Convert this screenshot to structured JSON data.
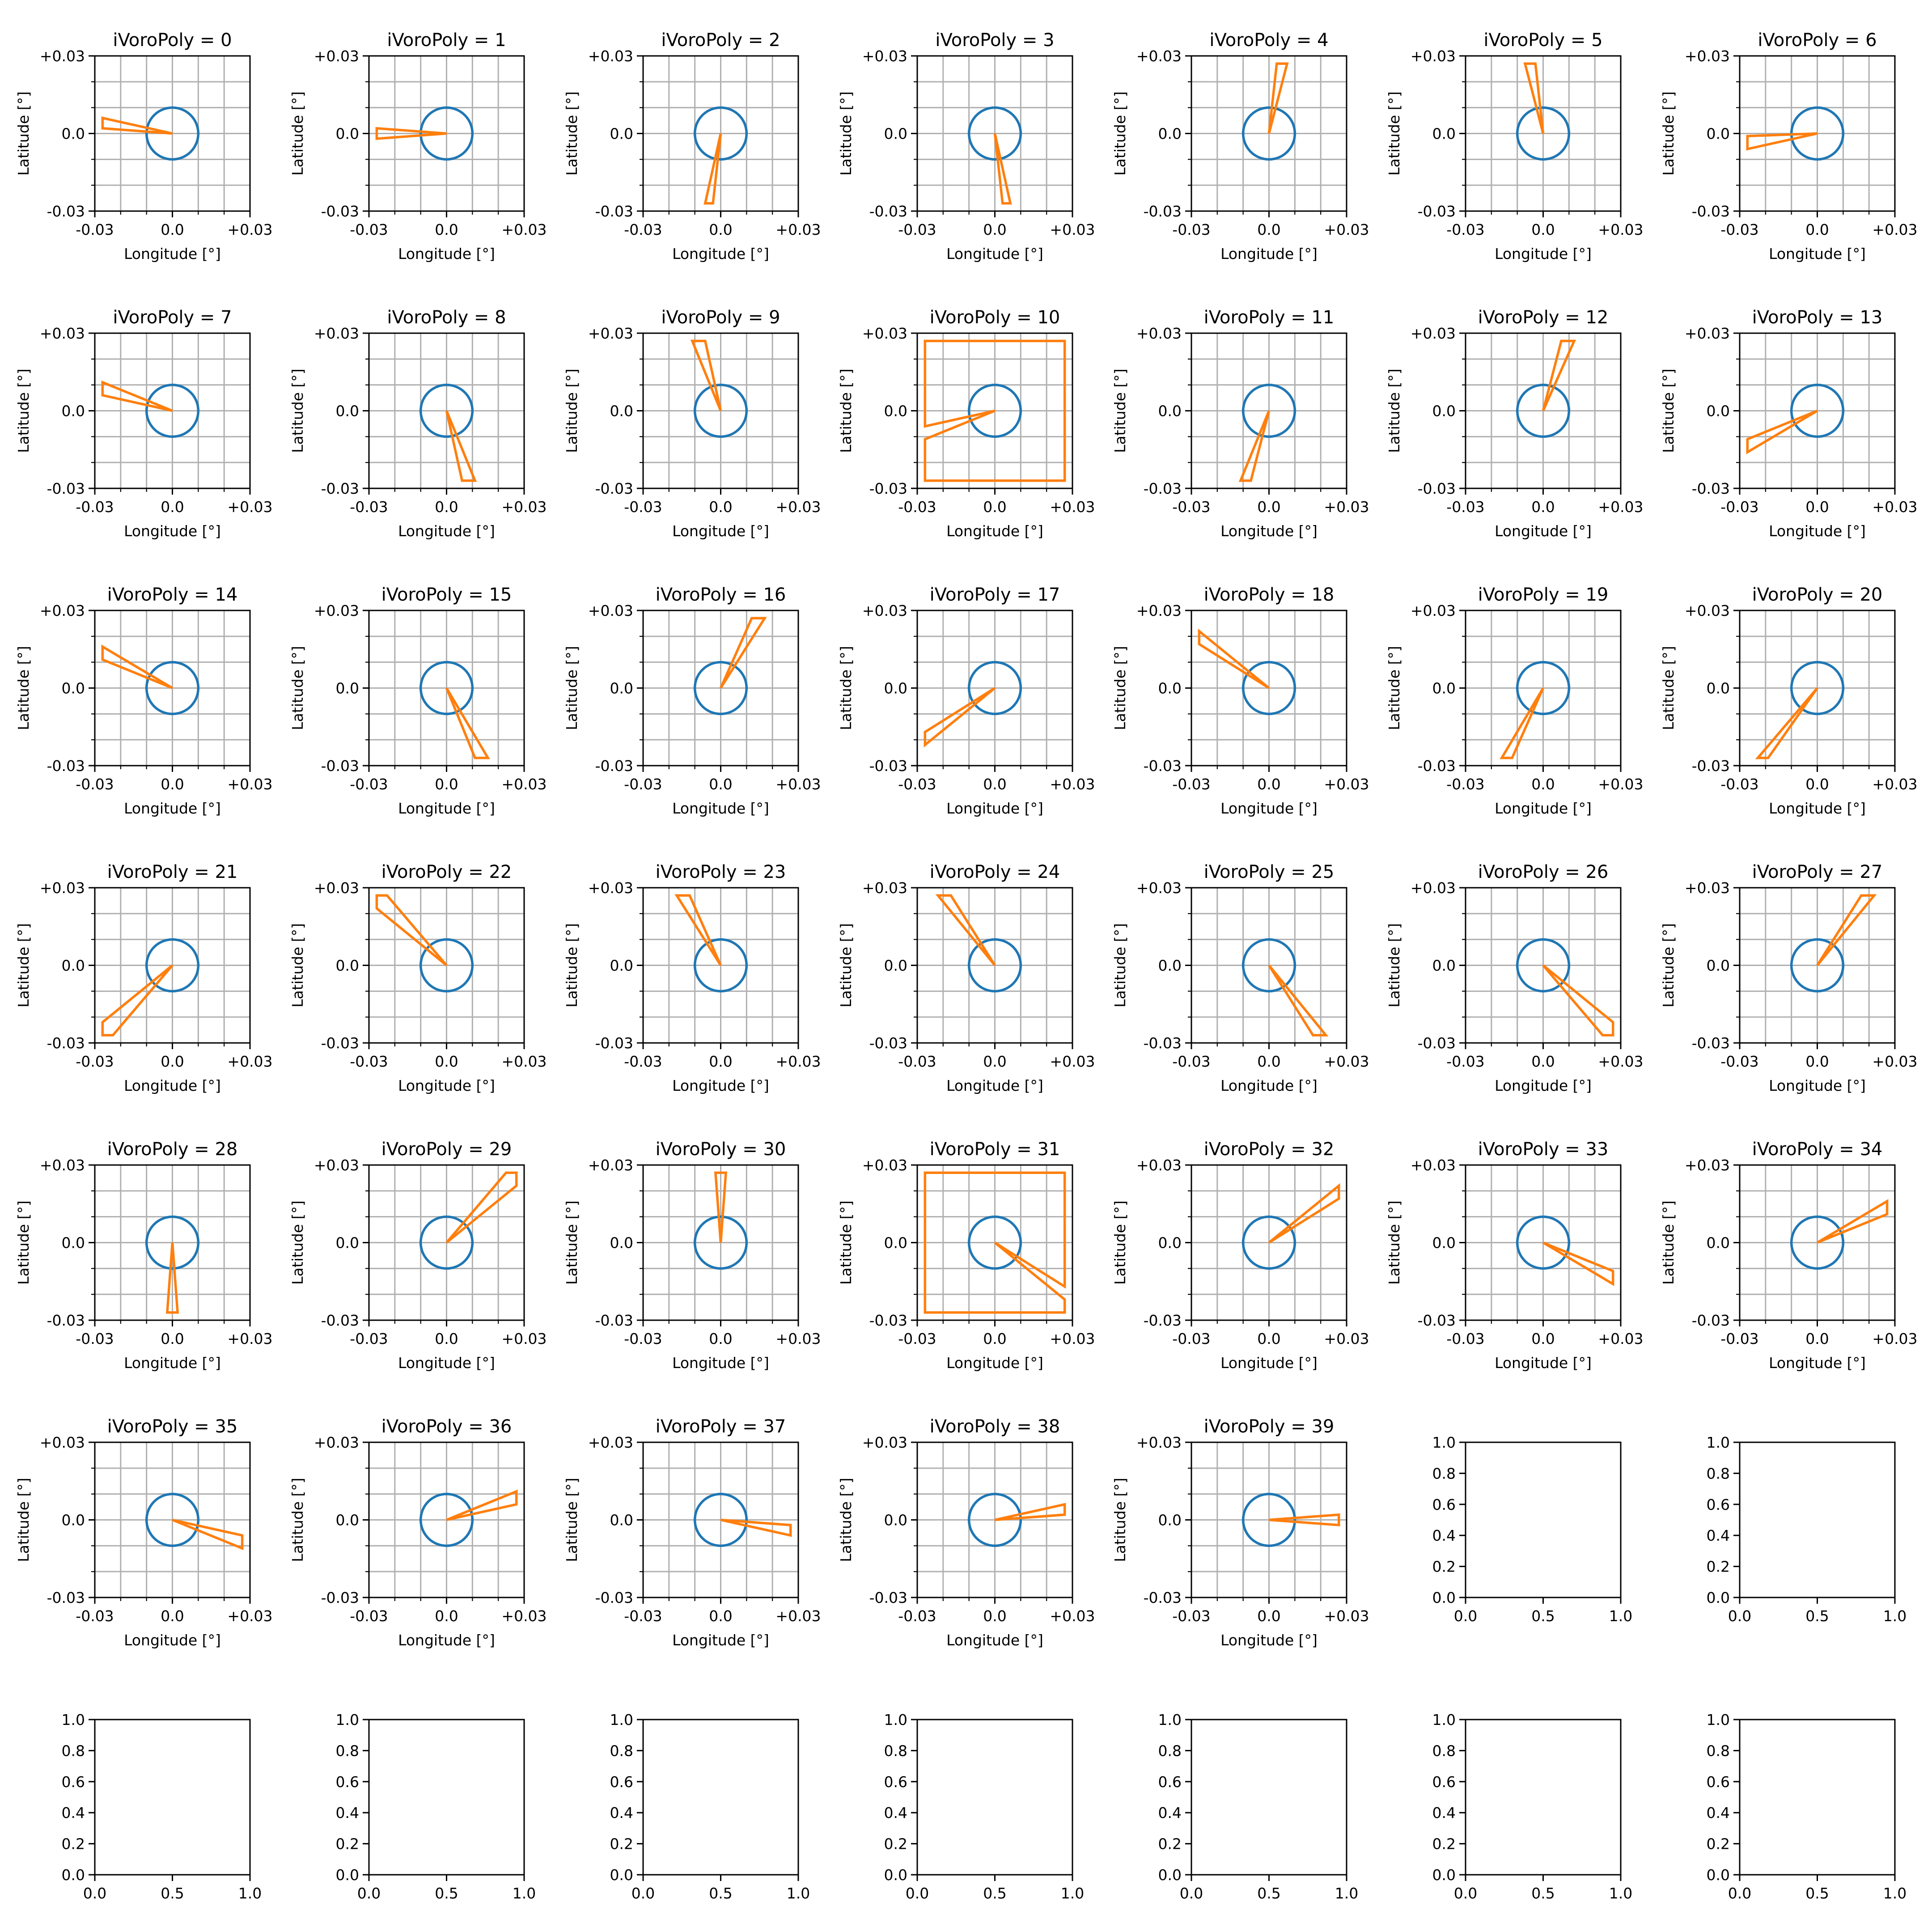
{
  "figure": {
    "grid_rows": 7,
    "grid_cols": 7,
    "colors": {
      "circle": "#1f77b4",
      "polygon": "#ff7f0e",
      "grid": "#b0b0b0",
      "axes": "#000000",
      "background": "#ffffff"
    }
  },
  "chart_data": {
    "type": "polygon-grid",
    "title_prefix": "iVoroPoly = ",
    "xlabel": "Longitude [°]",
    "ylabel": "Latitude [°]",
    "xlim": [
      -0.03,
      0.03
    ],
    "ylim": [
      -0.03,
      0.03
    ],
    "xticks": [
      -0.03,
      0.0,
      0.03
    ],
    "xtick_labels": [
      "-0.03",
      "0.0",
      "+0.03"
    ],
    "yticks": [
      -0.03,
      0.0,
      0.03
    ],
    "ytick_labels": [
      "-0.03",
      "0.0",
      "+0.03"
    ],
    "minor_step": 0.01,
    "grid": true,
    "circle": {
      "center": [
        0,
        0
      ],
      "radius": 0.01
    },
    "panels": [
      {
        "index": 0,
        "polygon": [
          [
            0,
            0
          ],
          [
            -0.027,
            0.006
          ],
          [
            -0.027,
            0.002
          ]
        ]
      },
      {
        "index": 1,
        "polygon": [
          [
            0,
            0
          ],
          [
            -0.027,
            0.002
          ],
          [
            -0.027,
            -0.002
          ]
        ]
      },
      {
        "index": 2,
        "polygon": [
          [
            0,
            0
          ],
          [
            -0.003,
            -0.027
          ],
          [
            -0.006,
            -0.027
          ]
        ]
      },
      {
        "index": 3,
        "polygon": [
          [
            0,
            0
          ],
          [
            0.003,
            -0.027
          ],
          [
            0.006,
            -0.027
          ]
        ]
      },
      {
        "index": 4,
        "polygon": [
          [
            0,
            0
          ],
          [
            0.003,
            0.027
          ],
          [
            0.007,
            0.027
          ]
        ]
      },
      {
        "index": 5,
        "polygon": [
          [
            0,
            0
          ],
          [
            -0.007,
            0.027
          ],
          [
            -0.003,
            0.027
          ]
        ]
      },
      {
        "index": 6,
        "polygon": [
          [
            0,
            0
          ],
          [
            -0.027,
            -0.001
          ],
          [
            -0.027,
            -0.006
          ]
        ]
      },
      {
        "index": 7,
        "polygon": [
          [
            0,
            0
          ],
          [
            -0.027,
            0.011
          ],
          [
            -0.027,
            0.006
          ]
        ]
      },
      {
        "index": 8,
        "polygon": [
          [
            0,
            0
          ],
          [
            0.006,
            -0.027
          ],
          [
            0.011,
            -0.027
          ]
        ]
      },
      {
        "index": 9,
        "polygon": [
          [
            0,
            0
          ],
          [
            -0.011,
            0.027
          ],
          [
            -0.006,
            0.027
          ]
        ]
      },
      {
        "index": 10,
        "polygon": [
          [
            0,
            0
          ],
          [
            -0.027,
            -0.011
          ],
          [
            -0.027,
            -0.027
          ],
          [
            0.027,
            -0.027
          ],
          [
            0.027,
            0.027
          ],
          [
            -0.027,
            0.027
          ],
          [
            -0.027,
            -0.006
          ]
        ]
      },
      {
        "index": 11,
        "polygon": [
          [
            0,
            0
          ],
          [
            -0.011,
            -0.027
          ],
          [
            -0.007,
            -0.027
          ]
        ]
      },
      {
        "index": 12,
        "polygon": [
          [
            0,
            0
          ],
          [
            0.007,
            0.027
          ],
          [
            0.012,
            0.027
          ]
        ]
      },
      {
        "index": 13,
        "polygon": [
          [
            0,
            0
          ],
          [
            -0.027,
            -0.011
          ],
          [
            -0.027,
            -0.016
          ]
        ]
      },
      {
        "index": 14,
        "polygon": [
          [
            0,
            0
          ],
          [
            -0.027,
            0.016
          ],
          [
            -0.027,
            0.011
          ]
        ]
      },
      {
        "index": 15,
        "polygon": [
          [
            0,
            0
          ],
          [
            0.011,
            -0.027
          ],
          [
            0.016,
            -0.027
          ]
        ]
      },
      {
        "index": 16,
        "polygon": [
          [
            0,
            0
          ],
          [
            0.012,
            0.027
          ],
          [
            0.017,
            0.027
          ]
        ]
      },
      {
        "index": 17,
        "polygon": [
          [
            0,
            0
          ],
          [
            -0.027,
            -0.017
          ],
          [
            -0.027,
            -0.022
          ]
        ]
      },
      {
        "index": 18,
        "polygon": [
          [
            0,
            0
          ],
          [
            -0.027,
            0.022
          ],
          [
            -0.027,
            0.017
          ]
        ]
      },
      {
        "index": 19,
        "polygon": [
          [
            0,
            0
          ],
          [
            -0.016,
            -0.027
          ],
          [
            -0.012,
            -0.027
          ]
        ]
      },
      {
        "index": 20,
        "polygon": [
          [
            0,
            0
          ],
          [
            -0.023,
            -0.027
          ],
          [
            -0.019,
            -0.027
          ]
        ]
      },
      {
        "index": 21,
        "polygon": [
          [
            0,
            0
          ],
          [
            -0.027,
            -0.022
          ],
          [
            -0.027,
            -0.027
          ],
          [
            -0.023,
            -0.027
          ]
        ]
      },
      {
        "index": 22,
        "polygon": [
          [
            0,
            0
          ],
          [
            -0.027,
            0.022
          ],
          [
            -0.027,
            0.027
          ],
          [
            -0.023,
            0.027
          ]
        ]
      },
      {
        "index": 23,
        "polygon": [
          [
            0,
            0
          ],
          [
            -0.017,
            0.027
          ],
          [
            -0.012,
            0.027
          ]
        ]
      },
      {
        "index": 24,
        "polygon": [
          [
            0,
            0
          ],
          [
            -0.022,
            0.027
          ],
          [
            -0.017,
            0.027
          ]
        ]
      },
      {
        "index": 25,
        "polygon": [
          [
            0,
            0
          ],
          [
            0.017,
            -0.027
          ],
          [
            0.022,
            -0.027
          ]
        ]
      },
      {
        "index": 26,
        "polygon": [
          [
            0,
            0
          ],
          [
            0.023,
            -0.027
          ],
          [
            0.027,
            -0.027
          ],
          [
            0.027,
            -0.022
          ]
        ]
      },
      {
        "index": 27,
        "polygon": [
          [
            0,
            0
          ],
          [
            0.017,
            0.027
          ],
          [
            0.022,
            0.027
          ]
        ]
      },
      {
        "index": 28,
        "polygon": [
          [
            0,
            0
          ],
          [
            -0.002,
            -0.027
          ],
          [
            0.002,
            -0.027
          ]
        ]
      },
      {
        "index": 29,
        "polygon": [
          [
            0,
            0
          ],
          [
            0.023,
            0.027
          ],
          [
            0.027,
            0.027
          ],
          [
            0.027,
            0.022
          ]
        ]
      },
      {
        "index": 30,
        "polygon": [
          [
            0,
            0
          ],
          [
            -0.002,
            0.027
          ],
          [
            0.002,
            0.027
          ]
        ]
      },
      {
        "index": 31,
        "polygon": [
          [
            0,
            0
          ],
          [
            0.027,
            -0.017
          ],
          [
            0.027,
            0.027
          ],
          [
            -0.027,
            0.027
          ],
          [
            -0.027,
            -0.027
          ],
          [
            0.027,
            -0.027
          ],
          [
            0.027,
            -0.022
          ]
        ]
      },
      {
        "index": 32,
        "polygon": [
          [
            0,
            0
          ],
          [
            0.027,
            0.017
          ],
          [
            0.027,
            0.022
          ]
        ]
      },
      {
        "index": 33,
        "polygon": [
          [
            0,
            0
          ],
          [
            0.027,
            -0.011
          ],
          [
            0.027,
            -0.016
          ]
        ]
      },
      {
        "index": 34,
        "polygon": [
          [
            0,
            0
          ],
          [
            0.027,
            0.011
          ],
          [
            0.027,
            0.016
          ]
        ]
      },
      {
        "index": 35,
        "polygon": [
          [
            0,
            0
          ],
          [
            0.027,
            -0.006
          ],
          [
            0.027,
            -0.011
          ]
        ]
      },
      {
        "index": 36,
        "polygon": [
          [
            0,
            0
          ],
          [
            0.027,
            0.006
          ],
          [
            0.027,
            0.011
          ]
        ]
      },
      {
        "index": 37,
        "polygon": [
          [
            0,
            0
          ],
          [
            0.027,
            -0.002
          ],
          [
            0.027,
            -0.006
          ]
        ]
      },
      {
        "index": 38,
        "polygon": [
          [
            0,
            0
          ],
          [
            0.027,
            0.002
          ],
          [
            0.027,
            0.006
          ]
        ]
      },
      {
        "index": 39,
        "polygon": [
          [
            0,
            0
          ],
          [
            0.027,
            0.002
          ],
          [
            0.027,
            -0.002
          ]
        ]
      }
    ],
    "empty_axes": {
      "count": 9,
      "xlim": [
        0,
        1
      ],
      "ylim": [
        0,
        1
      ],
      "xticks": [
        0.0,
        0.5,
        1.0
      ],
      "xtick_labels": [
        "0.0",
        "0.5",
        "1.0"
      ],
      "yticks": [
        0.0,
        0.2,
        0.4,
        0.6,
        0.8,
        1.0
      ],
      "ytick_labels": [
        "0.0",
        "0.2",
        "0.4",
        "0.6",
        "0.8",
        "1.0"
      ]
    }
  }
}
